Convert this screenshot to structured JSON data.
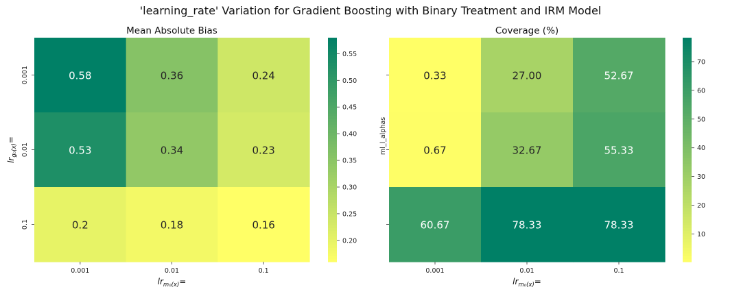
{
  "figure": {
    "suptitle": "'learning_rate' Variation for Gradient Boosting with Binary Treatment and IRM Model"
  },
  "chart_data": [
    {
      "type": "heatmap",
      "title": "Mean Absolute Bias",
      "x_label_main": "lr",
      "x_label_sub": "m₀(x)",
      "x_label_suffix": "=",
      "y_label_main": "lr",
      "y_label_sub": "g₀(x)",
      "y_label_suffix": "=",
      "x_ticks": [
        "0.001",
        "0.01",
        "0.1"
      ],
      "y_ticks": [
        "0.001",
        "0.01",
        "0.1"
      ],
      "values": [
        [
          0.58,
          0.36,
          0.24
        ],
        [
          0.53,
          0.34,
          0.23
        ],
        [
          0.2,
          0.18,
          0.16
        ]
      ],
      "cell_labels": [
        [
          "0.58",
          "0.36",
          "0.24"
        ],
        [
          "0.53",
          "0.34",
          "0.23"
        ],
        [
          "0.2",
          "0.18",
          "0.16"
        ]
      ],
      "colormap": "summer_r",
      "vmin": 0.16,
      "vmax": 0.58,
      "colorbar_ticks": [
        "0.20",
        "0.25",
        "0.30",
        "0.35",
        "0.40",
        "0.45",
        "0.50",
        "0.55"
      ]
    },
    {
      "type": "heatmap",
      "title": "Coverage (%)",
      "x_label_main": "lr",
      "x_label_sub": "m₀(x)",
      "x_label_suffix": "=",
      "y_label": "ml_l_alphas",
      "x_ticks": [
        "0.001",
        "0.01",
        "0.1"
      ],
      "y_ticks": [
        "",
        "",
        ""
      ],
      "values": [
        [
          0.33,
          27.0,
          52.67
        ],
        [
          0.67,
          32.67,
          55.33
        ],
        [
          60.67,
          78.33,
          78.33
        ]
      ],
      "cell_labels": [
        [
          "0.33",
          "27.00",
          "52.67"
        ],
        [
          "0.67",
          "32.67",
          "55.33"
        ],
        [
          "60.67",
          "78.33",
          "78.33"
        ]
      ],
      "colormap": "summer_r",
      "vmin": 0.33,
      "vmax": 78.33,
      "colorbar_ticks": [
        "10",
        "20",
        "30",
        "40",
        "50",
        "60",
        "70"
      ]
    }
  ]
}
